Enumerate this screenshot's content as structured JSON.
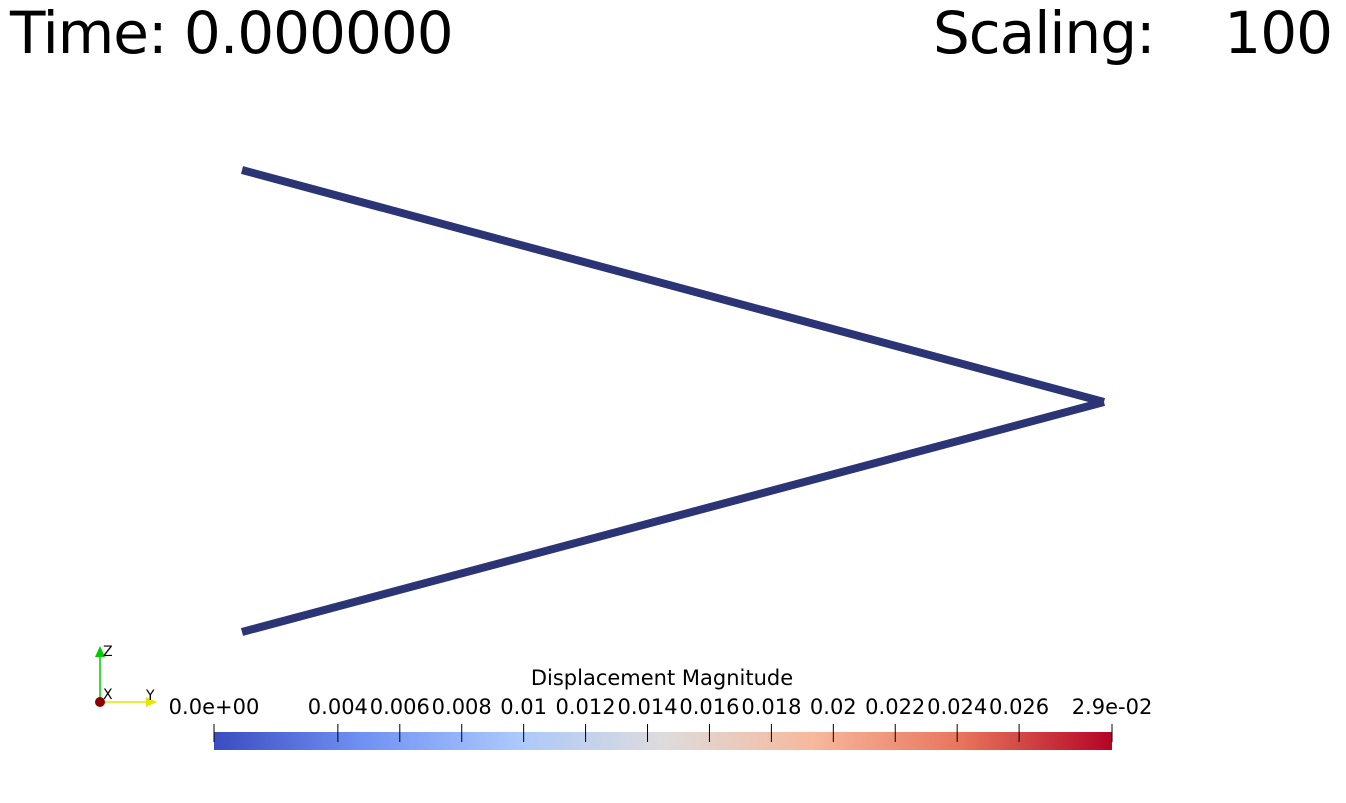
{
  "overlay": {
    "time_text": "Time: 0.000000",
    "scaling_text": "Scaling:    100"
  },
  "scalar_bar": {
    "title": "Displacement Magnitude",
    "range": [
      0.0,
      0.029
    ],
    "ticks": [
      {
        "value": 0.0,
        "label": "0.0e+00"
      },
      {
        "value": 0.004,
        "label": "0.004"
      },
      {
        "value": 0.006,
        "label": "0.006"
      },
      {
        "value": 0.008,
        "label": "0.008"
      },
      {
        "value": 0.01,
        "label": "0.01"
      },
      {
        "value": 0.012,
        "label": "0.012"
      },
      {
        "value": 0.014,
        "label": "0.014"
      },
      {
        "value": 0.016,
        "label": "0.016"
      },
      {
        "value": 0.018,
        "label": "0.018"
      },
      {
        "value": 0.02,
        "label": "0.02"
      },
      {
        "value": 0.022,
        "label": "0.022"
      },
      {
        "value": 0.024,
        "label": "0.024"
      },
      {
        "value": 0.026,
        "label": "0.026"
      },
      {
        "value": 0.029,
        "label": "2.9e-02"
      }
    ],
    "colormap": [
      "#3b4cc0",
      "#6f92f3",
      "#aac7fd",
      "#dddcdc",
      "#f7b89c",
      "#e7745b",
      "#b40426"
    ]
  },
  "model": {
    "member_color": "#2b3474"
  },
  "orientation_axes": {
    "labels": {
      "z": "Z",
      "x": "X",
      "y": "Y"
    },
    "colors": {
      "z": "#00cc00",
      "x": "#8b0000",
      "y": "#e6e600"
    }
  }
}
